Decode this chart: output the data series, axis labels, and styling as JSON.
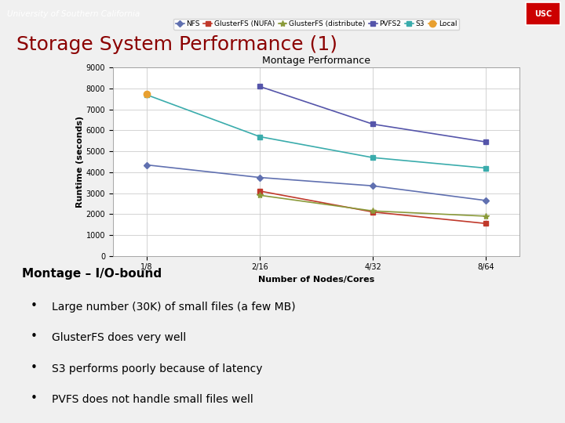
{
  "title": "Storage System Performance (1)",
  "chart_title": "Montage Performance",
  "xlabel": "Number of Nodes/Cores",
  "ylabel": "Runtime (seconds)",
  "x_labels": [
    "1/8",
    "2/16",
    "4/32",
    "8/64"
  ],
  "x_values": [
    0,
    1,
    2,
    3
  ],
  "series": {
    "NFS": {
      "values": [
        4350,
        3750,
        3350,
        2650
      ],
      "color": "#6070b0",
      "marker": "D",
      "linestyle": "-",
      "markersize": 4
    },
    "GlusterFS (NUFA)": {
      "values": [
        null,
        3100,
        2100,
        1550
      ],
      "color": "#c0392b",
      "marker": "s",
      "linestyle": "-",
      "markersize": 4
    },
    "GlusterFS (distribute)": {
      "values": [
        null,
        2900,
        2150,
        1900
      ],
      "color": "#8a9a3a",
      "marker": "*",
      "linestyle": "-",
      "markersize": 6
    },
    "PVFS2": {
      "values": [
        null,
        8100,
        6300,
        5450
      ],
      "color": "#5555aa",
      "marker": "s",
      "linestyle": "-",
      "markersize": 4
    },
    "S3": {
      "values": [
        7700,
        5700,
        4700,
        4200
      ],
      "color": "#3aacac",
      "marker": "s",
      "linestyle": "-",
      "markersize": 4
    },
    "Local": {
      "values": [
        7750,
        null,
        null,
        null
      ],
      "color": "#e8a030",
      "marker": "o",
      "linestyle": "-",
      "markersize": 6
    }
  },
  "ylim": [
    0,
    9000
  ],
  "yticks": [
    0,
    1000,
    2000,
    3000,
    4000,
    5000,
    6000,
    7000,
    8000,
    9000
  ],
  "bg_color": "#f0f0f0",
  "chart_bg": "#ffffff",
  "grid_color": "#cccccc",
  "header_bg": "#8b0000",
  "header_text": "University of Southern California",
  "header_text_color": "#ffffff",
  "slide_title_color": "#8b0000",
  "bullet_title": "Montage – I/O-bound",
  "bullets": [
    "Large number (30K) of small files (a few MB)",
    "GlusterFS does very well",
    "S3 performs poorly because of latency",
    "PVFS does not handle small files well"
  ]
}
